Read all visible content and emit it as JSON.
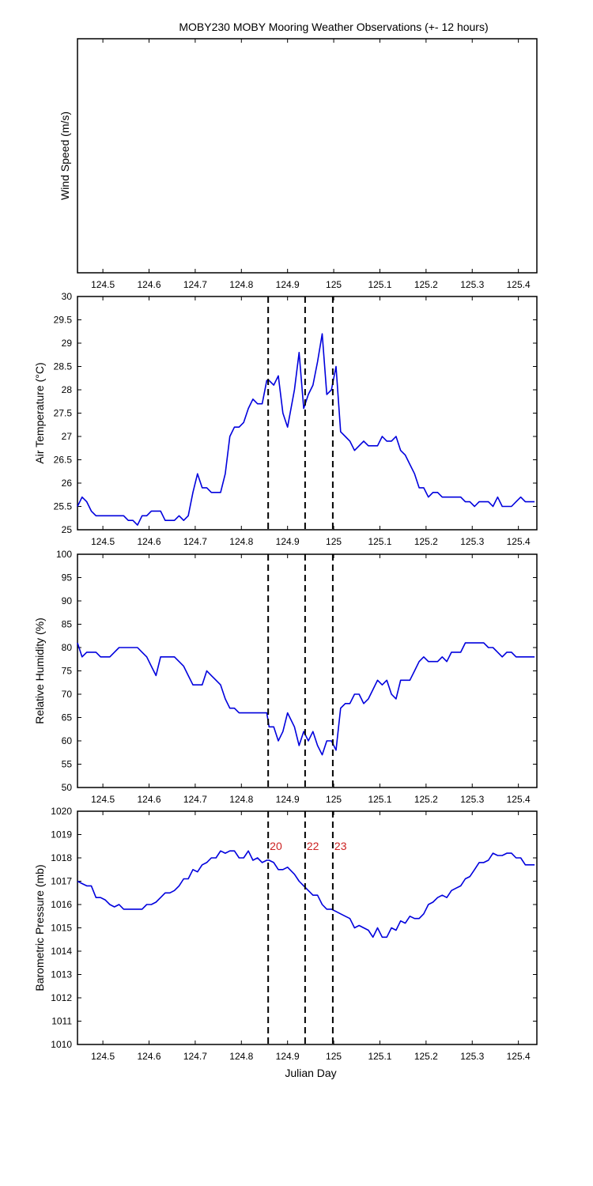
{
  "title": "MOBY230 MOBY Mooring Weather Observations (+- 12 hours)",
  "x_axis_label": "Julian Day",
  "colors": {
    "series": "#0000dd",
    "event_line": "#000000",
    "event_label": "#cc2222",
    "axes": "#000000"
  },
  "chart_data": [
    {
      "type": "line",
      "id": "wind",
      "ylabel": "Wind Speed (m/s)",
      "xlim": [
        124.445,
        125.44
      ],
      "ylim": null,
      "yticks": [],
      "xticks": [
        124.5,
        124.6,
        124.7,
        124.8,
        124.9,
        125,
        125.1,
        125.2,
        125.3,
        125.4
      ],
      "x": [],
      "y": []
    },
    {
      "type": "line",
      "id": "air_temp",
      "ylabel": "Air Temperature (°C)",
      "xlim": [
        124.445,
        125.44
      ],
      "ylim": [
        25,
        30
      ],
      "yticks": [
        25,
        25.5,
        26,
        26.5,
        27,
        27.5,
        28,
        28.5,
        29,
        29.5,
        30
      ],
      "xticks": [
        124.5,
        124.6,
        124.7,
        124.8,
        124.9,
        125,
        125.1,
        125.2,
        125.3,
        125.4
      ],
      "x": [
        124.445,
        124.455,
        124.465,
        124.475,
        124.485,
        124.495,
        124.505,
        124.515,
        124.525,
        124.535,
        124.545,
        124.555,
        124.565,
        124.575,
        124.585,
        124.595,
        124.605,
        124.615,
        124.625,
        124.635,
        124.645,
        124.655,
        124.665,
        124.675,
        124.685,
        124.695,
        124.705,
        124.715,
        124.725,
        124.735,
        124.745,
        124.755,
        124.765,
        124.775,
        124.785,
        124.795,
        124.805,
        124.815,
        124.825,
        124.835,
        124.845,
        124.855,
        124.86,
        124.87,
        124.88,
        124.89,
        124.9,
        124.915,
        124.925,
        124.935,
        124.945,
        124.955,
        124.965,
        124.975,
        124.985,
        124.995,
        125.005,
        125.015,
        125.025,
        125.035,
        125.045,
        125.055,
        125.065,
        125.075,
        125.085,
        125.095,
        125.105,
        125.115,
        125.125,
        125.135,
        125.145,
        125.155,
        125.165,
        125.175,
        125.185,
        125.195,
        125.205,
        125.215,
        125.225,
        125.235,
        125.245,
        125.255,
        125.265,
        125.275,
        125.285,
        125.295,
        125.305,
        125.315,
        125.325,
        125.335,
        125.345,
        125.355,
        125.365,
        125.375,
        125.385,
        125.395,
        125.405,
        125.415,
        125.425,
        125.435
      ],
      "y": [
        25.5,
        25.7,
        25.6,
        25.4,
        25.3,
        25.3,
        25.3,
        25.3,
        25.3,
        25.3,
        25.3,
        25.2,
        25.2,
        25.1,
        25.3,
        25.3,
        25.4,
        25.4,
        25.4,
        25.2,
        25.2,
        25.2,
        25.3,
        25.2,
        25.3,
        25.8,
        26.2,
        25.9,
        25.9,
        25.8,
        25.8,
        25.8,
        26.2,
        27.0,
        27.2,
        27.2,
        27.3,
        27.6,
        27.8,
        27.7,
        27.7,
        28.2,
        28.2,
        28.1,
        28.3,
        27.5,
        27.2,
        28.0,
        28.8,
        27.6,
        27.9,
        28.1,
        28.6,
        29.2,
        27.9,
        28.0,
        28.5,
        27.1,
        27.0,
        26.9,
        26.7,
        26.8,
        26.9,
        26.8,
        26.8,
        26.8,
        27.0,
        26.9,
        26.9,
        27.0,
        26.7,
        26.6,
        26.4,
        26.2,
        25.9,
        25.9,
        25.7,
        25.8,
        25.8,
        25.7,
        25.7,
        25.7,
        25.7,
        25.7,
        25.6,
        25.6,
        25.5,
        25.6,
        25.6,
        25.6,
        25.5,
        25.7,
        25.5,
        25.5,
        25.5,
        25.6,
        25.7,
        25.6,
        25.6,
        25.6
      ]
    },
    {
      "type": "line",
      "id": "humidity",
      "ylabel": "Relative Humidity (%)",
      "xlim": [
        124.445,
        125.44
      ],
      "ylim": [
        50,
        100
      ],
      "yticks": [
        50,
        55,
        60,
        65,
        70,
        75,
        80,
        85,
        90,
        95,
        100
      ],
      "xticks": [
        124.5,
        124.6,
        124.7,
        124.8,
        124.9,
        125,
        125.1,
        125.2,
        125.3,
        125.4
      ],
      "x": [
        124.445,
        124.455,
        124.465,
        124.475,
        124.485,
        124.495,
        124.505,
        124.515,
        124.525,
        124.535,
        124.545,
        124.555,
        124.565,
        124.575,
        124.585,
        124.595,
        124.605,
        124.615,
        124.625,
        124.635,
        124.645,
        124.655,
        124.665,
        124.675,
        124.685,
        124.695,
        124.705,
        124.715,
        124.725,
        124.735,
        124.745,
        124.755,
        124.765,
        124.775,
        124.785,
        124.795,
        124.805,
        124.815,
        124.825,
        124.835,
        124.845,
        124.855,
        124.86,
        124.87,
        124.88,
        124.89,
        124.9,
        124.915,
        124.925,
        124.935,
        124.945,
        124.955,
        124.965,
        124.975,
        124.985,
        124.995,
        125.005,
        125.015,
        125.025,
        125.035,
        125.045,
        125.055,
        125.065,
        125.075,
        125.085,
        125.095,
        125.105,
        125.115,
        125.125,
        125.135,
        125.145,
        125.155,
        125.165,
        125.175,
        125.185,
        125.195,
        125.205,
        125.215,
        125.225,
        125.235,
        125.245,
        125.255,
        125.265,
        125.275,
        125.285,
        125.295,
        125.305,
        125.315,
        125.325,
        125.335,
        125.345,
        125.355,
        125.365,
        125.375,
        125.385,
        125.395,
        125.405,
        125.415,
        125.425,
        125.435
      ],
      "y": [
        81,
        78,
        79,
        79,
        79,
        78,
        78,
        78,
        79,
        80,
        80,
        80,
        80,
        80,
        79,
        78,
        76,
        74,
        78,
        78,
        78,
        78,
        77,
        76,
        74,
        72,
        72,
        72,
        75,
        74,
        73,
        72,
        69,
        67,
        67,
        66,
        66,
        66,
        66,
        66,
        66,
        66,
        63,
        63,
        60,
        62,
        66,
        63,
        59,
        62,
        60,
        62,
        59,
        57,
        60,
        60,
        58,
        67,
        68,
        68,
        70,
        70,
        68,
        69,
        71,
        73,
        72,
        73,
        70,
        69,
        73,
        73,
        73,
        75,
        77,
        78,
        77,
        77,
        77,
        78,
        77,
        79,
        79,
        79,
        81,
        81,
        81,
        81,
        81,
        80,
        80,
        79,
        78,
        79,
        79,
        78,
        78,
        78,
        78,
        78
      ]
    },
    {
      "type": "line",
      "id": "pressure",
      "ylabel": "Barometric Pressure (mb)",
      "xlim": [
        124.445,
        125.44
      ],
      "ylim": [
        1010,
        1020
      ],
      "yticks": [
        1010,
        1011,
        1012,
        1013,
        1014,
        1015,
        1016,
        1017,
        1018,
        1019,
        1020
      ],
      "xticks": [
        124.5,
        124.6,
        124.7,
        124.8,
        124.9,
        125,
        125.1,
        125.2,
        125.3,
        125.4
      ],
      "x": [
        124.445,
        124.455,
        124.465,
        124.475,
        124.485,
        124.495,
        124.505,
        124.515,
        124.525,
        124.535,
        124.545,
        124.555,
        124.565,
        124.575,
        124.585,
        124.595,
        124.605,
        124.615,
        124.625,
        124.635,
        124.645,
        124.655,
        124.665,
        124.675,
        124.685,
        124.695,
        124.705,
        124.715,
        124.725,
        124.735,
        124.745,
        124.755,
        124.765,
        124.775,
        124.785,
        124.795,
        124.805,
        124.815,
        124.825,
        124.835,
        124.845,
        124.855,
        124.86,
        124.87,
        124.88,
        124.89,
        124.9,
        124.915,
        124.925,
        124.935,
        124.945,
        124.955,
        124.965,
        124.975,
        124.985,
        124.995,
        125.005,
        125.015,
        125.025,
        125.035,
        125.045,
        125.055,
        125.065,
        125.075,
        125.085,
        125.095,
        125.105,
        125.115,
        125.125,
        125.135,
        125.145,
        125.155,
        125.165,
        125.175,
        125.185,
        125.195,
        125.205,
        125.215,
        125.225,
        125.235,
        125.245,
        125.255,
        125.265,
        125.275,
        125.285,
        125.295,
        125.305,
        125.315,
        125.325,
        125.335,
        125.345,
        125.355,
        125.365,
        125.375,
        125.385,
        125.395,
        125.405,
        125.415,
        125.425,
        125.435
      ],
      "y": [
        1017.0,
        1016.9,
        1016.8,
        1016.8,
        1016.3,
        1016.3,
        1016.2,
        1016.0,
        1015.9,
        1016.0,
        1015.8,
        1015.8,
        1015.8,
        1015.8,
        1015.8,
        1016.0,
        1016.0,
        1016.1,
        1016.3,
        1016.5,
        1016.5,
        1016.6,
        1016.8,
        1017.1,
        1017.1,
        1017.5,
        1017.4,
        1017.7,
        1017.8,
        1018.0,
        1018.0,
        1018.3,
        1018.2,
        1018.3,
        1018.3,
        1018.0,
        1018.0,
        1018.3,
        1017.9,
        1018.0,
        1017.8,
        1017.9,
        1017.9,
        1017.8,
        1017.5,
        1017.5,
        1017.6,
        1017.3,
        1017.0,
        1016.8,
        1016.6,
        1016.4,
        1016.4,
        1016.0,
        1015.8,
        1015.8,
        1015.7,
        1015.6,
        1015.5,
        1015.4,
        1015.0,
        1015.1,
        1015.0,
        1014.9,
        1014.6,
        1015.0,
        1014.6,
        1014.6,
        1015.0,
        1014.9,
        1015.3,
        1015.2,
        1015.5,
        1015.4,
        1015.4,
        1015.6,
        1016.0,
        1016.1,
        1016.3,
        1016.4,
        1016.3,
        1016.6,
        1016.7,
        1016.8,
        1017.1,
        1017.2,
        1017.5,
        1017.8,
        1017.8,
        1017.9,
        1018.2,
        1018.1,
        1018.1,
        1018.2,
        1018.2,
        1018.0,
        1018.0,
        1017.7,
        1017.7,
        1017.7
      ]
    }
  ],
  "events": [
    {
      "x": 124.858,
      "label": "20"
    },
    {
      "x": 124.938,
      "label": "22"
    },
    {
      "x": 124.998,
      "label": "23"
    }
  ]
}
